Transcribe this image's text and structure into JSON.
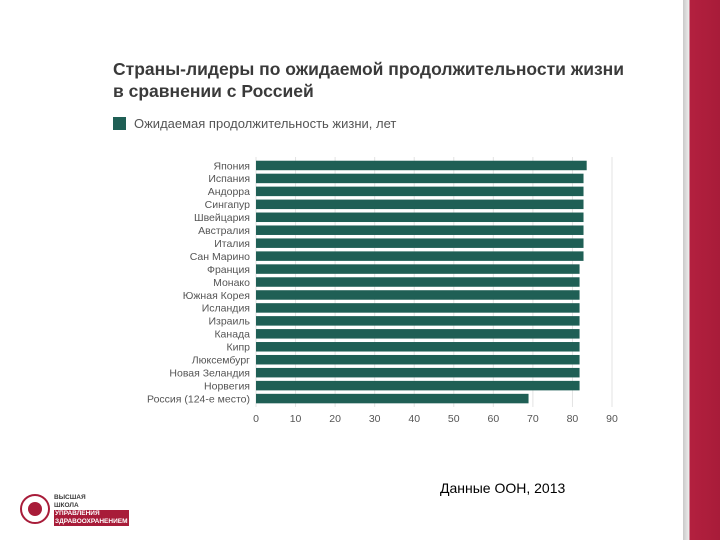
{
  "slide": {
    "title_line1": "Страны-лидеры по ожидаемой продолжительности жизни",
    "title_line2": "в сравнении с Россией",
    "source_note": "Данные ООН, 2013",
    "logo_lines": [
      "ВЫСШАЯ",
      "ШКОЛА",
      "УПРАВЛЕНИЯ",
      "ЗДРАВООХРАНЕНИЕМ"
    ],
    "accent_color": "#a81c39"
  },
  "chart_data": {
    "type": "bar",
    "orientation": "horizontal",
    "legend": "Ожидаемая продолжительность жизни, лет",
    "legend_placement": "top-left",
    "bar_color": "#1f5f55",
    "grid": true,
    "xlim": [
      0,
      90
    ],
    "xticks": [
      0,
      10,
      20,
      30,
      40,
      50,
      60,
      70,
      80,
      90
    ],
    "categories": [
      "Япония",
      "Испания",
      "Андорра",
      "Сингапур",
      "Швейцария",
      "Австралия",
      "Италия",
      "Сан Марино",
      "Франция",
      "Монако",
      "Южная Корея",
      "Исландия",
      "Израиль",
      "Канада",
      "Кипр",
      "Люксембург",
      "Новая Зеландия",
      "Норвегия",
      "Россия (124-е место)"
    ],
    "values": [
      83.6,
      82.8,
      82.8,
      82.8,
      82.8,
      82.8,
      82.8,
      82.8,
      81.8,
      81.8,
      81.8,
      81.8,
      81.8,
      81.8,
      81.8,
      81.8,
      81.8,
      81.8,
      68.9
    ]
  }
}
